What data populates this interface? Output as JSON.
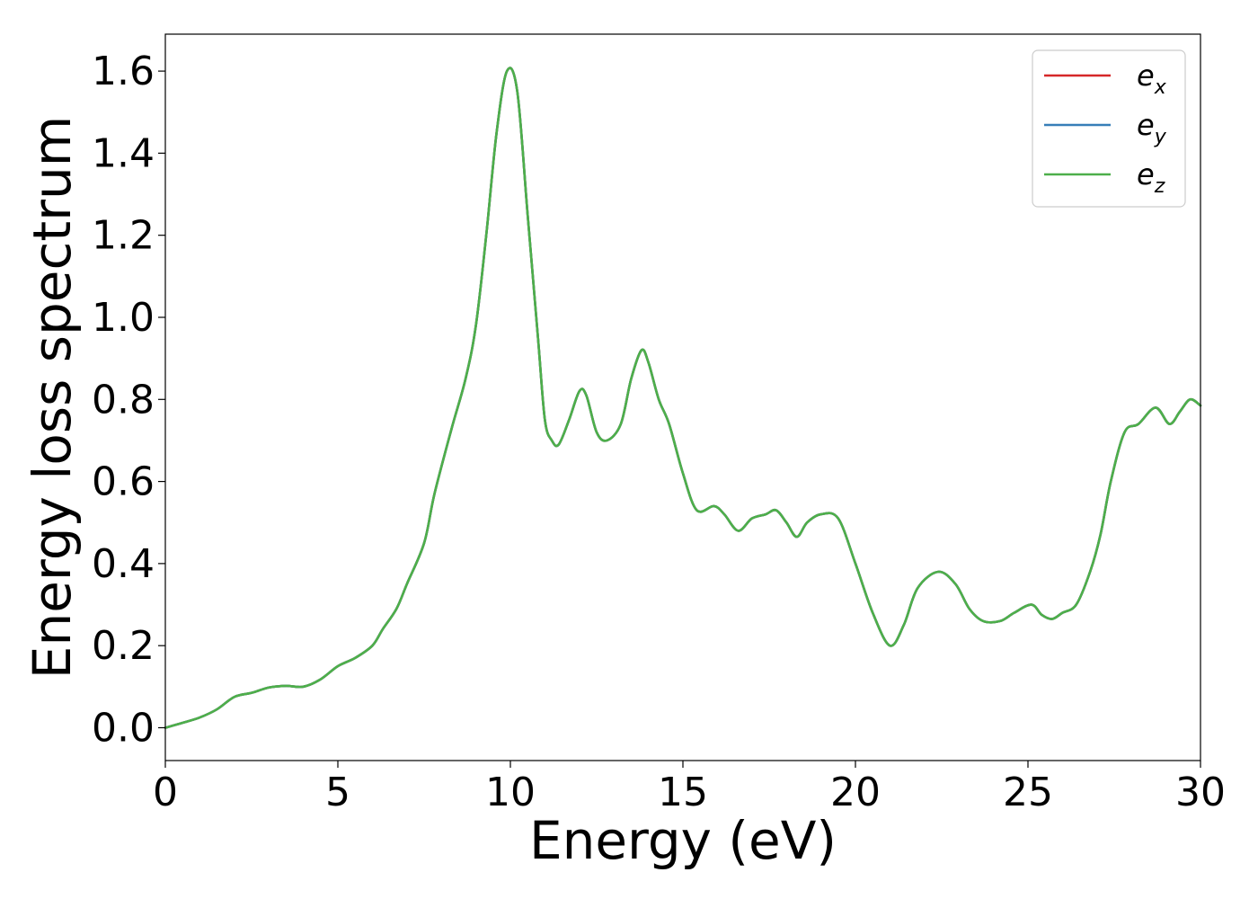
{
  "chart_data": {
    "type": "line",
    "title": "",
    "xlabel": "Energy (eV)",
    "ylabel": "Energy loss spectrum",
    "xlim": [
      0,
      30
    ],
    "ylim": [
      -0.08,
      1.69
    ],
    "xticks": [
      0,
      5,
      10,
      15,
      20,
      25,
      30
    ],
    "xtick_labels": [
      "0",
      "5",
      "10",
      "15",
      "20",
      "25",
      "30"
    ],
    "yticks": [
      0.0,
      0.2,
      0.4,
      0.6,
      0.8,
      1.0,
      1.2,
      1.4,
      1.6
    ],
    "ytick_labels": [
      "0.0",
      "0.2",
      "0.4",
      "0.6",
      "0.8",
      "1.0",
      "1.2",
      "1.4",
      "1.6"
    ],
    "grid": false,
    "legend_position": "top-right",
    "x": [
      0,
      0.5,
      1.0,
      1.5,
      2.0,
      2.5,
      3.0,
      3.5,
      4.0,
      4.5,
      5.0,
      5.5,
      6.0,
      6.3,
      6.7,
      7.0,
      7.5,
      7.8,
      8.3,
      8.7,
      9.0,
      9.3,
      9.6,
      9.9,
      10.2,
      10.5,
      10.8,
      11.0,
      11.2,
      11.4,
      11.7,
      12.0,
      12.2,
      12.5,
      12.8,
      13.2,
      13.5,
      13.8,
      14.0,
      14.3,
      14.6,
      15.0,
      15.4,
      15.9,
      16.2,
      16.6,
      17.0,
      17.4,
      17.7,
      18.0,
      18.3,
      18.6,
      19.0,
      19.5,
      20.0,
      20.5,
      21.0,
      21.4,
      21.8,
      22.4,
      22.9,
      23.3,
      23.7,
      24.2,
      24.6,
      25.1,
      25.4,
      25.7,
      26.0,
      26.4,
      26.8,
      27.1,
      27.4,
      27.8,
      28.2,
      28.7,
      29.1,
      29.4,
      29.7,
      30.0
    ],
    "series": [
      {
        "name": "e_x",
        "label_base": "e",
        "label_sub": "x",
        "color": "#d62728",
        "y": [
          0.0,
          0.012,
          0.025,
          0.045,
          0.075,
          0.085,
          0.098,
          0.102,
          0.1,
          0.118,
          0.15,
          0.17,
          0.2,
          0.24,
          0.29,
          0.35,
          0.45,
          0.57,
          0.73,
          0.85,
          0.98,
          1.2,
          1.45,
          1.6,
          1.55,
          1.25,
          0.95,
          0.75,
          0.7,
          0.69,
          0.75,
          0.82,
          0.81,
          0.72,
          0.7,
          0.74,
          0.85,
          0.92,
          0.89,
          0.8,
          0.74,
          0.62,
          0.53,
          0.54,
          0.52,
          0.48,
          0.51,
          0.52,
          0.53,
          0.5,
          0.465,
          0.5,
          0.52,
          0.51,
          0.4,
          0.28,
          0.2,
          0.25,
          0.34,
          0.38,
          0.35,
          0.29,
          0.26,
          0.26,
          0.28,
          0.3,
          0.275,
          0.265,
          0.28,
          0.3,
          0.38,
          0.47,
          0.6,
          0.72,
          0.74,
          0.78,
          0.74,
          0.77,
          0.8,
          0.785
        ]
      },
      {
        "name": "e_y",
        "label_base": "e",
        "label_sub": "y",
        "color": "#377eb8",
        "y": [
          0.0,
          0.012,
          0.025,
          0.045,
          0.075,
          0.085,
          0.098,
          0.102,
          0.1,
          0.118,
          0.15,
          0.17,
          0.2,
          0.24,
          0.29,
          0.35,
          0.45,
          0.57,
          0.73,
          0.85,
          0.98,
          1.2,
          1.45,
          1.6,
          1.55,
          1.25,
          0.95,
          0.75,
          0.7,
          0.69,
          0.75,
          0.82,
          0.81,
          0.72,
          0.7,
          0.74,
          0.85,
          0.92,
          0.89,
          0.8,
          0.74,
          0.62,
          0.53,
          0.54,
          0.52,
          0.48,
          0.51,
          0.52,
          0.53,
          0.5,
          0.465,
          0.5,
          0.52,
          0.51,
          0.4,
          0.28,
          0.2,
          0.25,
          0.34,
          0.38,
          0.35,
          0.29,
          0.26,
          0.26,
          0.28,
          0.3,
          0.275,
          0.265,
          0.28,
          0.3,
          0.38,
          0.47,
          0.6,
          0.72,
          0.74,
          0.78,
          0.74,
          0.77,
          0.8,
          0.785
        ]
      },
      {
        "name": "e_z",
        "label_base": "e",
        "label_sub": "z",
        "color": "#4daf4a",
        "y": [
          0.0,
          0.012,
          0.025,
          0.045,
          0.075,
          0.085,
          0.098,
          0.102,
          0.1,
          0.118,
          0.15,
          0.17,
          0.2,
          0.24,
          0.29,
          0.35,
          0.45,
          0.57,
          0.73,
          0.85,
          0.98,
          1.2,
          1.45,
          1.6,
          1.55,
          1.25,
          0.95,
          0.75,
          0.7,
          0.69,
          0.75,
          0.82,
          0.81,
          0.72,
          0.7,
          0.74,
          0.85,
          0.92,
          0.89,
          0.8,
          0.74,
          0.62,
          0.53,
          0.54,
          0.52,
          0.48,
          0.51,
          0.52,
          0.53,
          0.5,
          0.465,
          0.5,
          0.52,
          0.51,
          0.4,
          0.28,
          0.2,
          0.25,
          0.34,
          0.38,
          0.35,
          0.29,
          0.26,
          0.26,
          0.28,
          0.3,
          0.275,
          0.265,
          0.28,
          0.3,
          0.38,
          0.47,
          0.6,
          0.72,
          0.74,
          0.78,
          0.74,
          0.77,
          0.8,
          0.785
        ]
      }
    ]
  }
}
